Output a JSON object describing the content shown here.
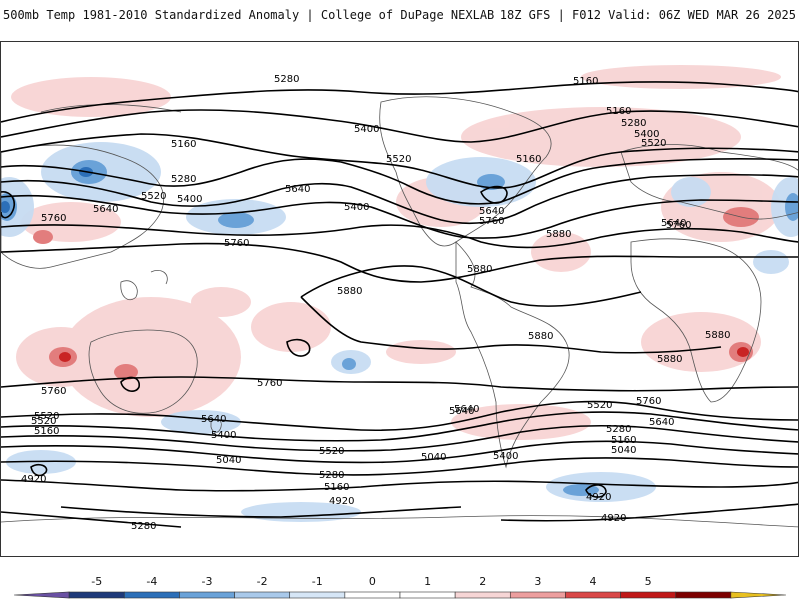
{
  "header": {
    "left_title": "500mb Temp 1981-2010 Standardized Anomaly | College of DuPage NEXLAB",
    "right_title": "18Z GFS | F012 Valid: 06Z WED MAR 26 2025"
  },
  "contour_labels": [
    "5280",
    "5160",
    "5160",
    "5280",
    "5400",
    "5520",
    "5160",
    "5280",
    "5400",
    "5520",
    "5640",
    "5760",
    "5640",
    "5400",
    "5520",
    "5160",
    "5640",
    "5760",
    "5880",
    "5880",
    "5880",
    "5880",
    "5880",
    "5760",
    "5640",
    "5760",
    "5640",
    "5400",
    "5520",
    "5040",
    "5280",
    "5160",
    "4920",
    "4920",
    "5760",
    "5640",
    "5520",
    "5280",
    "5160",
    "5040",
    "5400",
    "5040",
    "4920",
    "4920",
    "5520",
    "5640",
    "5760",
    "5880",
    "5760",
    "5640",
    "5400",
    "5520",
    "5160",
    "5280"
  ],
  "colorbar": {
    "ticks": [
      "-5",
      "-4",
      "-3",
      "-2",
      "-1",
      "0",
      "1",
      "2",
      "3",
      "4",
      "5"
    ],
    "colors": [
      "#6a51a3",
      "#1f3a7a",
      "#2c6fb8",
      "#6aa2d8",
      "#a9c9ea",
      "#d6e6f6",
      "#ffffff",
      "#ffffff",
      "#f6d5d5",
      "#ec9e9e",
      "#d94848",
      "#c01818",
      "#7c0000",
      "#e8c020"
    ]
  }
}
